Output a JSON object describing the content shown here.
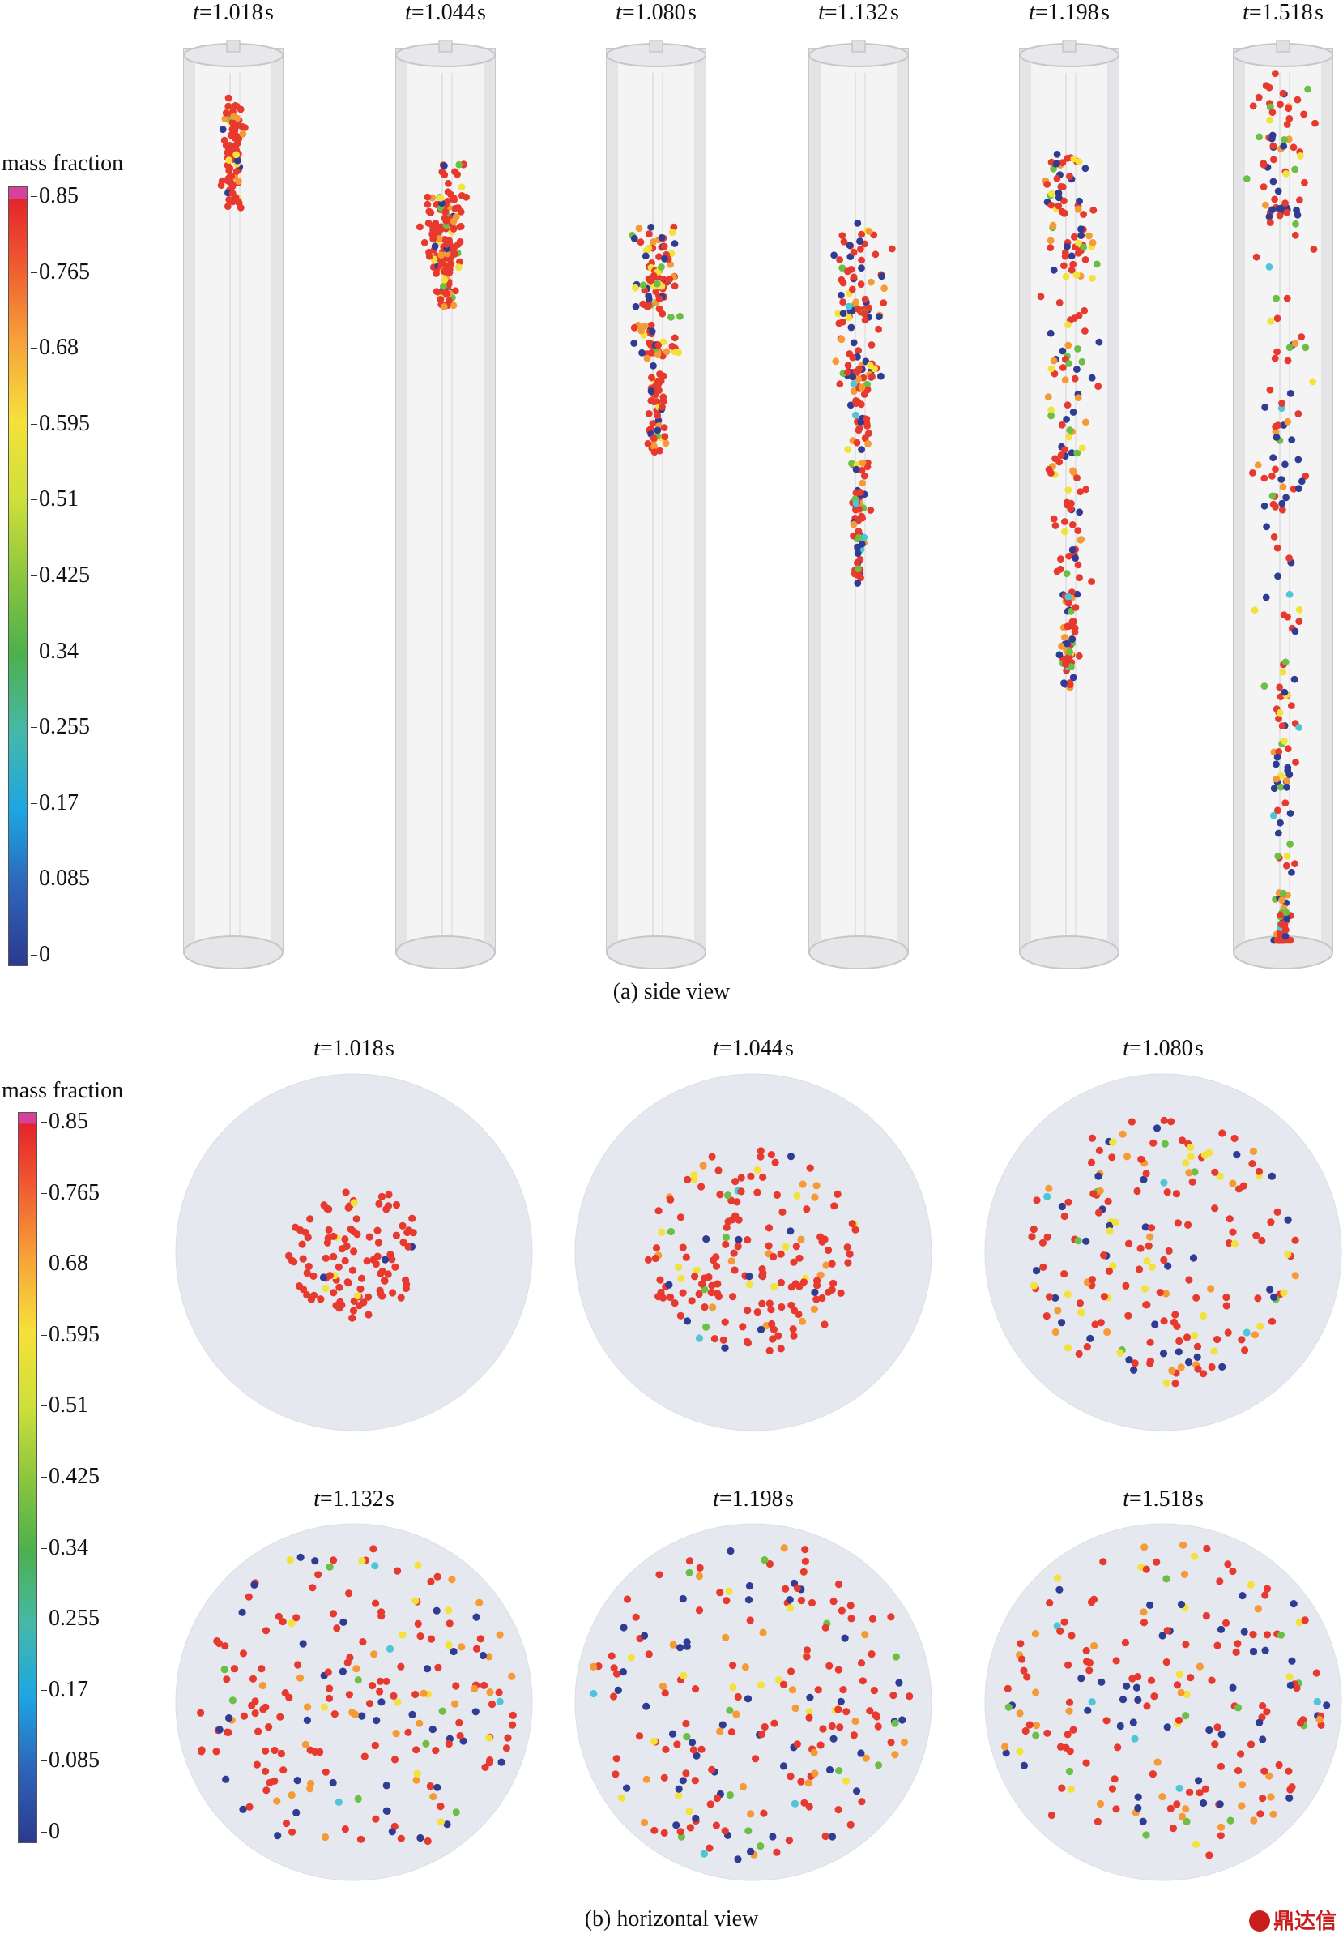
{
  "figure": {
    "colorbar": {
      "title": "mass fraction",
      "ticks": [
        "0.85",
        "0.765",
        "0.68",
        "0.595",
        "0.51",
        "0.425",
        "0.34",
        "0.255",
        "0.17",
        "0.085",
        "0"
      ],
      "colors": [
        "#2b3a8f",
        "#2e64b8",
        "#1ca6e3",
        "#46b8a8",
        "#4db04d",
        "#8cc63e",
        "#cfe03a",
        "#f5e13a",
        "#f7a33a",
        "#f05a30",
        "#e3242b"
      ],
      "top_color": "#d6419a"
    },
    "side_view": {
      "caption": "(a) side view",
      "panels": [
        {
          "t": "1.018",
          "unit": "s"
        },
        {
          "t": "1.044",
          "unit": "s"
        },
        {
          "t": "1.080",
          "unit": "s"
        },
        {
          "t": "1.132",
          "unit": "s"
        },
        {
          "t": "1.198",
          "unit": "s"
        },
        {
          "t": "1.518",
          "unit": "s"
        }
      ]
    },
    "horizontal_view": {
      "caption": "(b) horizontal view",
      "panels": [
        {
          "t": "1.018",
          "unit": "s"
        },
        {
          "t": "1.044",
          "unit": "s"
        },
        {
          "t": "1.080",
          "unit": "s"
        },
        {
          "t": "1.132",
          "unit": "s"
        },
        {
          "t": "1.198",
          "unit": "s"
        },
        {
          "t": "1.518",
          "unit": "s"
        }
      ]
    },
    "particle_colors": {
      "red": "#e8392f",
      "orange": "#f59a34",
      "yellow": "#f2e23a",
      "green": "#6bbf45",
      "cyan": "#4ec6d8",
      "blue": "#2f3c93"
    },
    "watermark": "鼎达信"
  }
}
